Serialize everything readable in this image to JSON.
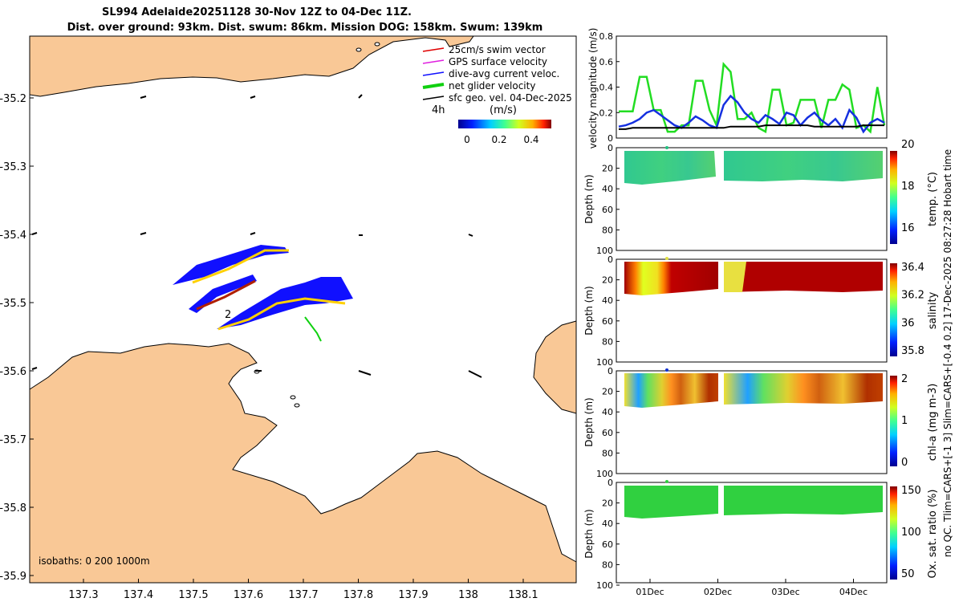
{
  "header": {
    "line1": "SL994 Adelaide20251128 30-Nov 12Z to 04-Dec 11Z.",
    "line2": "Dist. over ground: 93km. Dist. swum: 86km. Mission DOG: 158km. Swum: 139km"
  },
  "map": {
    "lon_ticks": [
      "137.3",
      "137.4",
      "137.5",
      "137.6",
      "137.7",
      "137.8",
      "137.9",
      "138",
      "138.1"
    ],
    "lat_ticks": [
      "-35.2",
      "-35.3",
      "-35.4",
      "-35.5",
      "-35.6",
      "-35.7",
      "-35.8",
      "-35.9"
    ],
    "legend": [
      "25cm/s swim vector",
      "GPS surface velocity",
      "dive-avg current veloc.",
      "net glider velocity",
      "sfc geo. vel. 04-Dec-2025"
    ],
    "legend_colors": [
      "#e00000",
      "#e020e0",
      "#1010ff",
      "#10d010",
      "#000000"
    ],
    "interval_label": "4h",
    "colorbar_label": "(m/s)",
    "colorbar_ticks": [
      "0",
      "0.2",
      "0.4"
    ],
    "isobaths": "isobaths: 0   200  1000m",
    "track_label": "2",
    "land_color": "#f9c896"
  },
  "velocity_panel": {
    "ylabel": "velocity magnitude (m/s)",
    "yticks": [
      "0",
      "0.2",
      "0.4",
      "0.6",
      "0.8"
    ],
    "ylim": [
      0,
      0.8
    ],
    "series": [
      {
        "name": "net glider velocity",
        "color": "#22dd22",
        "values": [
          0.21,
          0.21,
          0.21,
          0.48,
          0.48,
          0.22,
          0.22,
          0.05,
          0.05,
          0.1,
          0.1,
          0.45,
          0.45,
          0.22,
          0.1,
          0.58,
          0.52,
          0.15,
          0.15,
          0.2,
          0.08,
          0.05,
          0.38,
          0.38,
          0.1,
          0.12,
          0.3,
          0.3,
          0.3,
          0.08,
          0.3,
          0.3,
          0.42,
          0.38,
          0.08,
          0.1,
          0.05,
          0.4,
          0.1
        ]
      },
      {
        "name": "dive-avg current veloc.",
        "color": "#1530e0",
        "values": [
          0.09,
          0.1,
          0.12,
          0.15,
          0.2,
          0.22,
          0.18,
          0.14,
          0.1,
          0.08,
          0.12,
          0.17,
          0.14,
          0.1,
          0.08,
          0.26,
          0.33,
          0.28,
          0.2,
          0.15,
          0.12,
          0.18,
          0.15,
          0.11,
          0.2,
          0.18,
          0.1,
          0.16,
          0.2,
          0.14,
          0.1,
          0.15,
          0.08,
          0.22,
          0.16,
          0.05,
          0.12,
          0.15,
          0.12
        ]
      },
      {
        "name": "sfc geo. vel.",
        "color": "#000000",
        "values": [
          0.07,
          0.07,
          0.08,
          0.08,
          0.08,
          0.08,
          0.08,
          0.08,
          0.08,
          0.08,
          0.08,
          0.08,
          0.08,
          0.08,
          0.08,
          0.08,
          0.09,
          0.09,
          0.09,
          0.09,
          0.09,
          0.1,
          0.1,
          0.1,
          0.1,
          0.1,
          0.1,
          0.1,
          0.09,
          0.09,
          0.09,
          0.09,
          0.09,
          0.09,
          0.09,
          0.1,
          0.1,
          0.1,
          0.1
        ]
      }
    ]
  },
  "depth_panels": [
    {
      "cblabel": "temp. (°C)",
      "cbticks": [
        "16",
        "18",
        "20"
      ],
      "yticks": [
        "0",
        "20",
        "40",
        "60",
        "80",
        "100"
      ],
      "ylabel": "Depth (m)"
    },
    {
      "cblabel": "salinity",
      "cbticks": [
        "35.8",
        "36",
        "36.2",
        "36.4"
      ],
      "yticks": [
        "0",
        "20",
        "40",
        "60",
        "80",
        "100"
      ],
      "ylabel": "Depth (m)"
    },
    {
      "cblabel": "chl-a (mg m-3)",
      "cbticks": [
        "0",
        "1",
        "2"
      ],
      "yticks": [
        "0",
        "20",
        "40",
        "60",
        "80",
        "100"
      ],
      "ylabel": "Depth (m)"
    },
    {
      "cblabel": "Ox. sat. ratio (%)",
      "cbticks": [
        "50",
        "100",
        "150"
      ],
      "yticks": [
        "0",
        "20",
        "40",
        "60",
        "80",
        "100"
      ],
      "ylabel": "Depth (m)"
    }
  ],
  "time_ticks": [
    "01Dec",
    "02Dec",
    "03Dec",
    "04Dec"
  ],
  "side_note": "no QC. Tlim=CARS+[-1 3] Slim=CARS+[-0.4 0.2] 17-Dec-2025 08:27:28 Hobart time"
}
